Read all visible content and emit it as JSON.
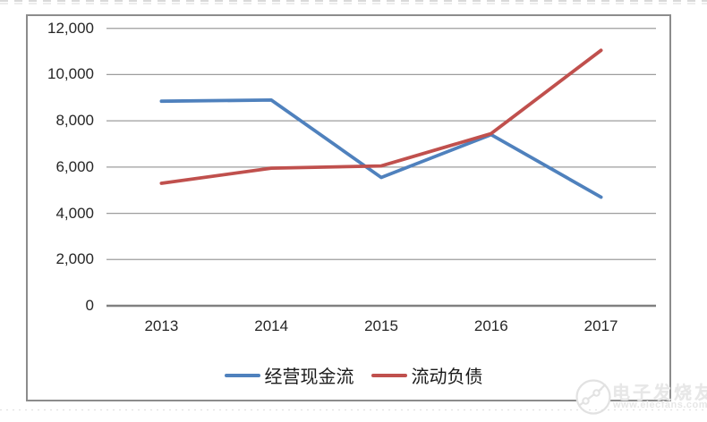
{
  "chart_data": {
    "type": "line",
    "categories": [
      "2013",
      "2014",
      "2015",
      "2016",
      "2017"
    ],
    "series": [
      {
        "name": "经营现金流",
        "color": "#4F81BD",
        "values": [
          8850,
          8900,
          5550,
          7400,
          4700
        ]
      },
      {
        "name": "流动负债",
        "color": "#C0504D",
        "values": [
          5300,
          5950,
          6050,
          7450,
          11050
        ]
      }
    ],
    "title": "",
    "xlabel": "",
    "ylabel": "",
    "ylim": [
      0,
      12000
    ],
    "ytick_interval": 2000,
    "ytick_labels": [
      "0",
      "2,000",
      "4,000",
      "6,000",
      "8,000",
      "10,000",
      "12,000"
    ],
    "grid": true,
    "legend_position": "bottom"
  },
  "colors": {
    "series_blue": "#4F81BD",
    "series_red": "#C0504D",
    "gridline": "#9d9d9d",
    "axis_line": "#808080",
    "chart_border": "#8c8c8c",
    "tick_text": "#262626",
    "watermark": "#e7e7e7"
  },
  "watermark": {
    "brand": "电子发烧友",
    "url": "www.elecfans.com"
  }
}
